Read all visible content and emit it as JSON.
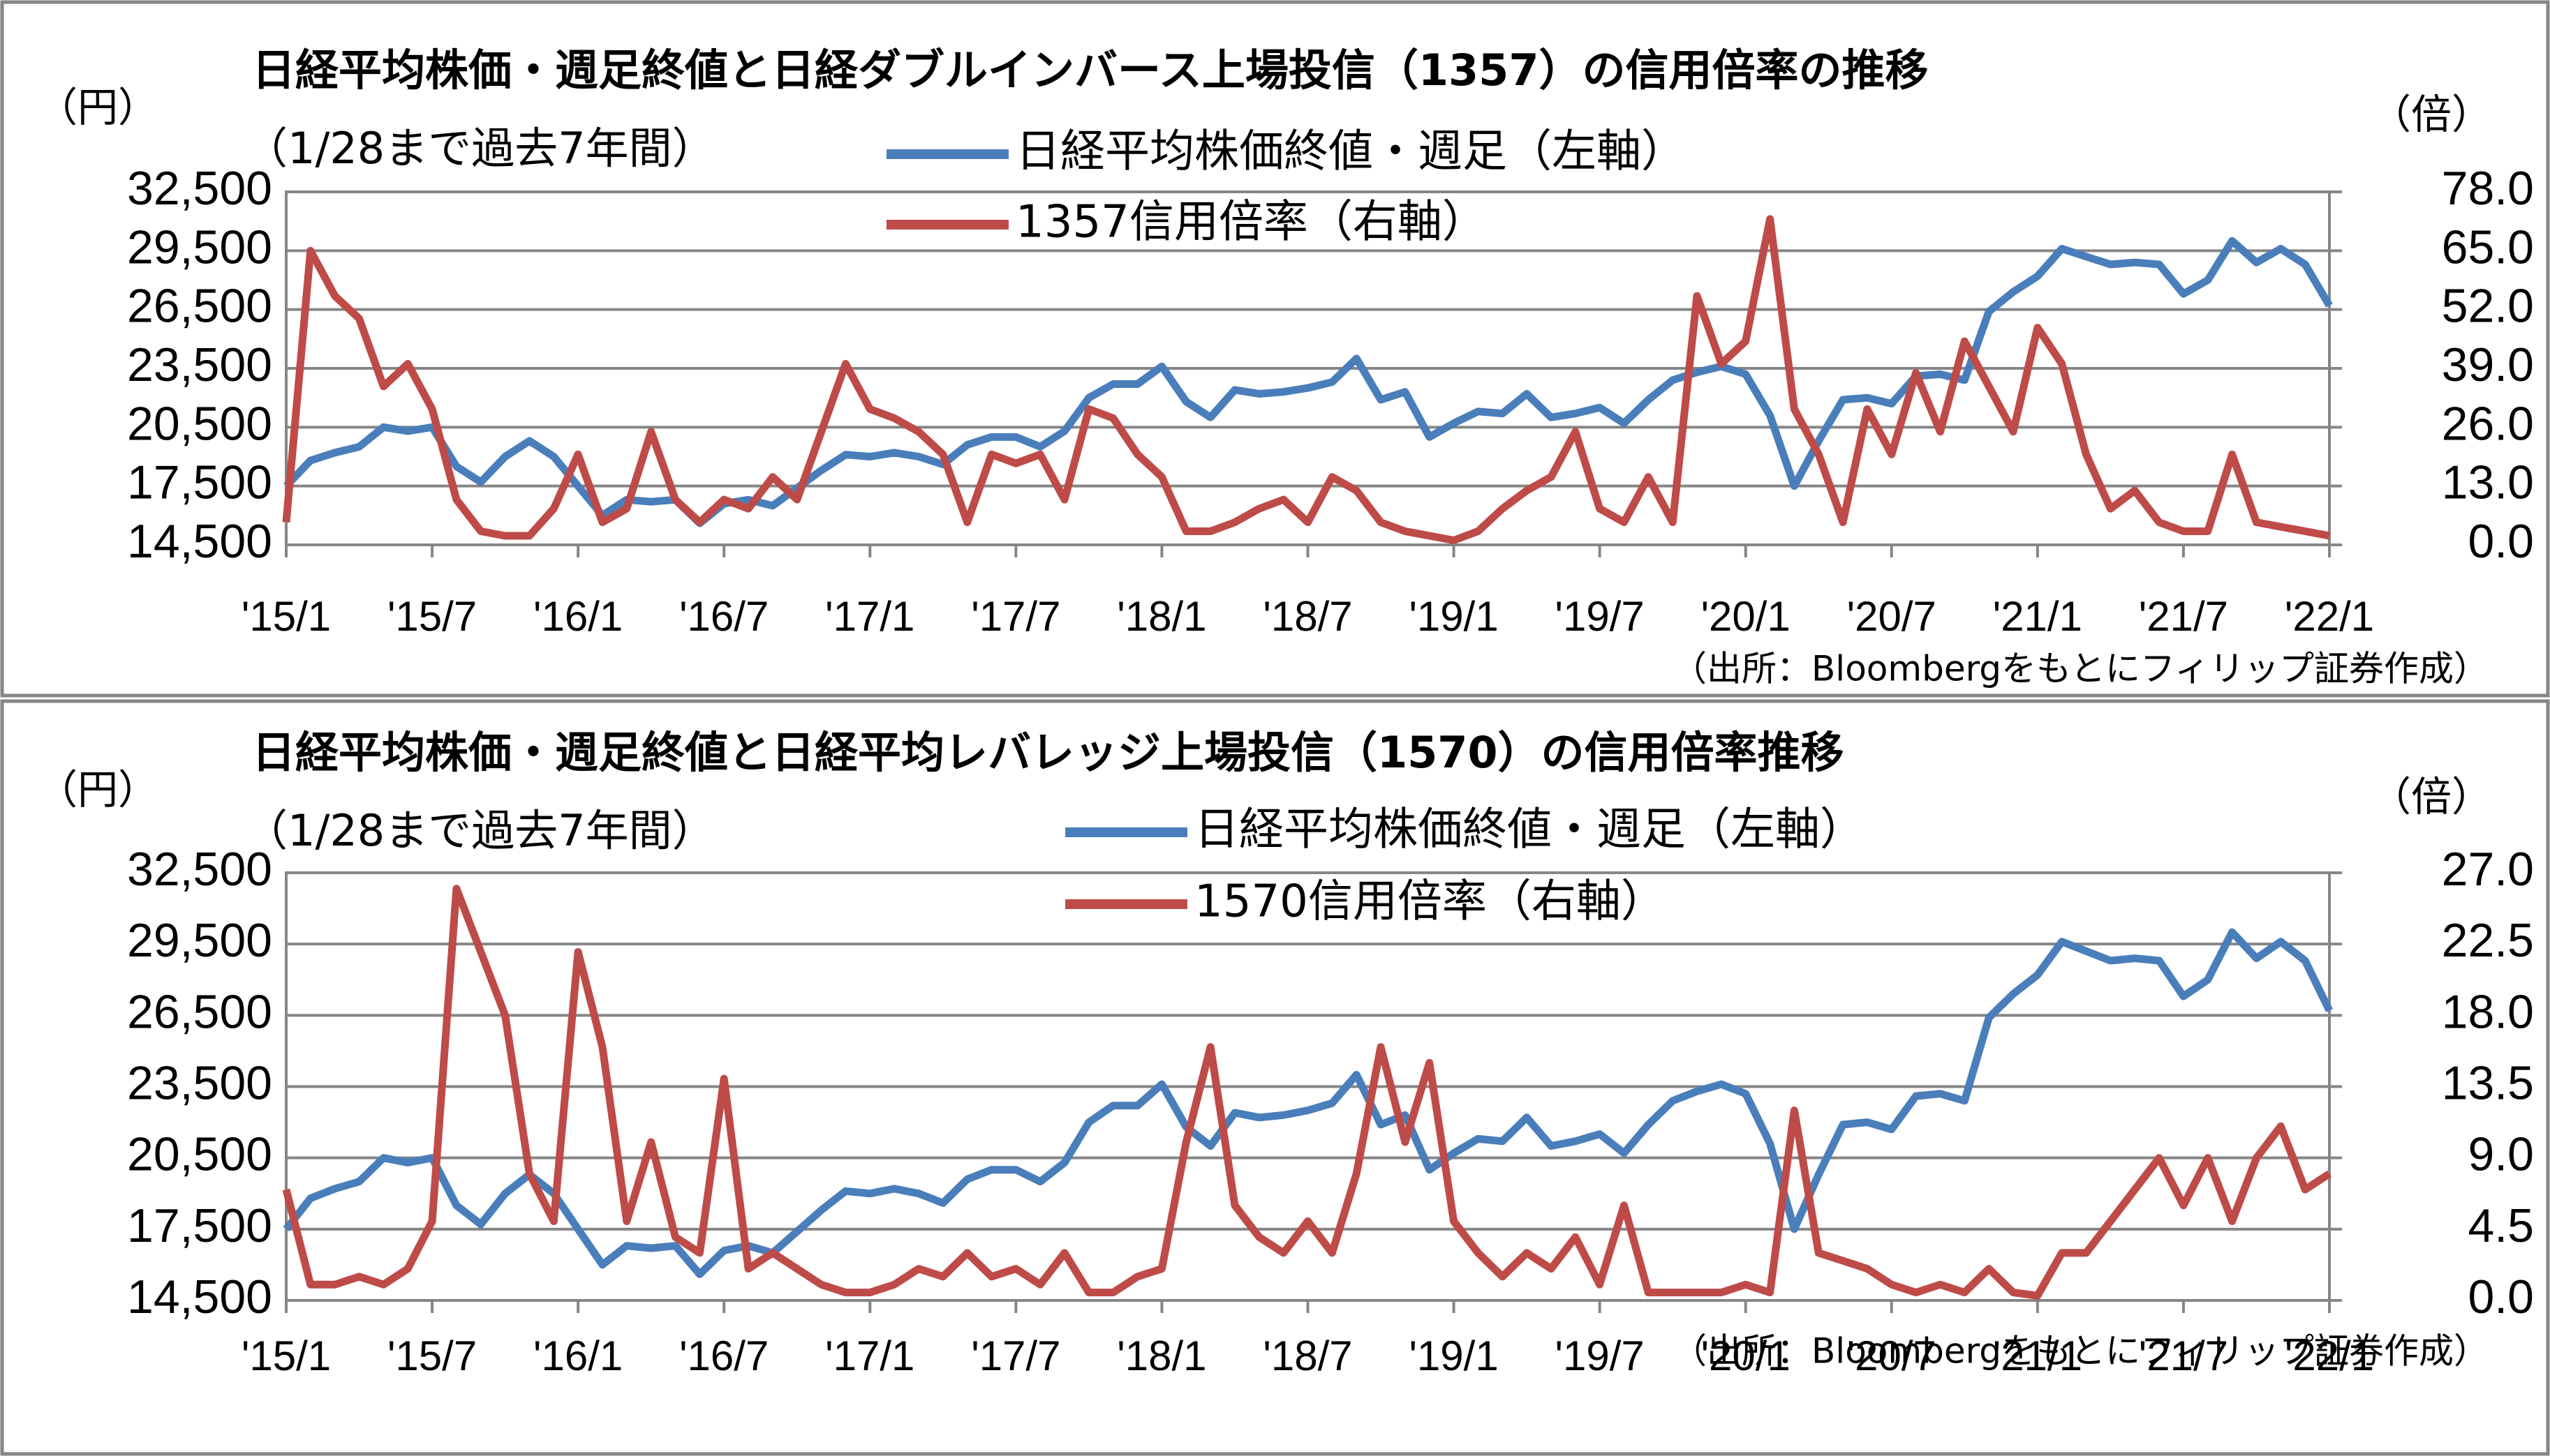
{
  "chart_data": [
    {
      "type": "line",
      "title": "日経平均株価・週足終値と日経ダブルインバース上場投信（1357）の信用倍率の推移",
      "subtitle": "（1/28まで過去7年間）",
      "ylabel": "（円）",
      "y2label": "（倍）",
      "source": "（出所：Bloombergをもとにフィリップ証券作成）",
      "x": [
        "2015-01",
        "2015-02",
        "2015-03",
        "2015-04",
        "2015-05",
        "2015-06",
        "2015-07",
        "2015-08",
        "2015-09",
        "2015-10",
        "2015-11",
        "2015-12",
        "2016-01",
        "2016-02",
        "2016-03",
        "2016-04",
        "2016-05",
        "2016-06",
        "2016-07",
        "2016-08",
        "2016-09",
        "2016-10",
        "2016-11",
        "2016-12",
        "2017-01",
        "2017-02",
        "2017-03",
        "2017-04",
        "2017-05",
        "2017-06",
        "2017-07",
        "2017-08",
        "2017-09",
        "2017-10",
        "2017-11",
        "2017-12",
        "2018-01",
        "2018-02",
        "2018-03",
        "2018-04",
        "2018-05",
        "2018-06",
        "2018-07",
        "2018-08",
        "2018-09",
        "2018-10",
        "2018-11",
        "2018-12",
        "2019-01",
        "2019-02",
        "2019-03",
        "2019-04",
        "2019-05",
        "2019-06",
        "2019-07",
        "2019-08",
        "2019-09",
        "2019-10",
        "2019-11",
        "2019-12",
        "2020-01",
        "2020-02",
        "2020-03",
        "2020-04",
        "2020-05",
        "2020-06",
        "2020-07",
        "2020-08",
        "2020-09",
        "2020-10",
        "2020-11",
        "2020-12",
        "2021-01",
        "2021-02",
        "2021-03",
        "2021-04",
        "2021-05",
        "2021-06",
        "2021-07",
        "2021-08",
        "2021-09",
        "2021-10",
        "2021-11",
        "2021-12",
        "2022-01"
      ],
      "xlim": [
        "2015-01",
        "2022-01"
      ],
      "xticks": [
        {
          "value": "2015-01",
          "label": "'15/1"
        },
        {
          "value": "2015-07",
          "label": "'15/7"
        },
        {
          "value": "2016-01",
          "label": "'16/1"
        },
        {
          "value": "2016-07",
          "label": "'16/7"
        },
        {
          "value": "2017-01",
          "label": "'17/1"
        },
        {
          "value": "2017-07",
          "label": "'17/7"
        },
        {
          "value": "2018-01",
          "label": "'18/1"
        },
        {
          "value": "2018-07",
          "label": "'18/7"
        },
        {
          "value": "2019-01",
          "label": "'19/1"
        },
        {
          "value": "2019-07",
          "label": "'19/7"
        },
        {
          "value": "2020-01",
          "label": "'20/1"
        },
        {
          "value": "2020-07",
          "label": "'20/7"
        },
        {
          "value": "2021-01",
          "label": "'21/1"
        },
        {
          "value": "2021-07",
          "label": "'21/7"
        },
        {
          "value": "2022-01",
          "label": "'22/1"
        }
      ],
      "ylim": [
        14500,
        32500
      ],
      "yticks": [
        {
          "value": 14500,
          "label": "14,500"
        },
        {
          "value": 17500,
          "label": "17,500"
        },
        {
          "value": 20500,
          "label": "20,500"
        },
        {
          "value": 23500,
          "label": "23,500"
        },
        {
          "value": 26500,
          "label": "26,500"
        },
        {
          "value": 29500,
          "label": "29,500"
        },
        {
          "value": 32500,
          "label": "32,500"
        }
      ],
      "y2lim": [
        0,
        78
      ],
      "y2ticks": [
        {
          "value": 0,
          "label": "0.0"
        },
        {
          "value": 13,
          "label": "13.0"
        },
        {
          "value": 26,
          "label": "26.0"
        },
        {
          "value": 39,
          "label": "39.0"
        },
        {
          "value": 52,
          "label": "52.0"
        },
        {
          "value": 65,
          "label": "65.0"
        },
        {
          "value": 78,
          "label": "78.0"
        }
      ],
      "grid": true,
      "series": [
        {
          "name": "日経平均株価終値・週足（左軸）",
          "color": "#4a7ebb",
          "values": [
            17500,
            18800,
            19200,
            19500,
            20500,
            20300,
            20500,
            18500,
            17700,
            19000,
            19800,
            19000,
            17500,
            16000,
            16800,
            16700,
            16800,
            15600,
            16600,
            16800,
            16500,
            17400,
            18300,
            19100,
            19000,
            19200,
            19000,
            18600,
            19600,
            20000,
            20000,
            19500,
            20300,
            22000,
            22700,
            22700,
            23600,
            21800,
            21000,
            22400,
            22200,
            22300,
            22500,
            22800,
            24000,
            21900,
            22300,
            20000,
            20700,
            21300,
            21200,
            22200,
            21000,
            21200,
            21500,
            20700,
            21900,
            22900,
            23300,
            23600,
            23200,
            21100,
            17500,
            19800,
            21900,
            22000,
            21700,
            23100,
            23200,
            22900,
            26400,
            27400,
            28200,
            29600,
            29200,
            28800,
            28900,
            28800,
            27300,
            28000,
            30000,
            28900,
            29600,
            28800,
            26700
          ]
        },
        {
          "name": "1357信用倍率（右軸）",
          "color": "#be4b48",
          "axis": "y2",
          "values": [
            5,
            65,
            55,
            50,
            35,
            40,
            30,
            10,
            3,
            2,
            2,
            8,
            20,
            5,
            8,
            25,
            10,
            5,
            10,
            8,
            15,
            10,
            25,
            40,
            30,
            28,
            25,
            20,
            5,
            20,
            18,
            20,
            10,
            30,
            28,
            20,
            15,
            3,
            3,
            5,
            8,
            10,
            5,
            15,
            12,
            5,
            3,
            2,
            1,
            3,
            8,
            12,
            15,
            25,
            8,
            5,
            15,
            5,
            55,
            40,
            45,
            72,
            30,
            20,
            5,
            30,
            20,
            38,
            25,
            45,
            35,
            25,
            48,
            40,
            20,
            8,
            12,
            5,
            3,
            3,
            20,
            5,
            4,
            3,
            2
          ]
        }
      ]
    },
    {
      "type": "line",
      "title": "日経平均株価・週足終値と日経平均レバレッジ上場投信（1570）の信用倍率推移",
      "subtitle": "（1/28まで過去7年間）",
      "ylabel": "（円）",
      "y2label": "（倍）",
      "source": "（出所：Bloombergをもとにフィリップ証券作成）",
      "x": [
        "2015-01",
        "2015-02",
        "2015-03",
        "2015-04",
        "2015-05",
        "2015-06",
        "2015-07",
        "2015-08",
        "2015-09",
        "2015-10",
        "2015-11",
        "2015-12",
        "2016-01",
        "2016-02",
        "2016-03",
        "2016-04",
        "2016-05",
        "2016-06",
        "2016-07",
        "2016-08",
        "2016-09",
        "2016-10",
        "2016-11",
        "2016-12",
        "2017-01",
        "2017-02",
        "2017-03",
        "2017-04",
        "2017-05",
        "2017-06",
        "2017-07",
        "2017-08",
        "2017-09",
        "2017-10",
        "2017-11",
        "2017-12",
        "2018-01",
        "2018-02",
        "2018-03",
        "2018-04",
        "2018-05",
        "2018-06",
        "2018-07",
        "2018-08",
        "2018-09",
        "2018-10",
        "2018-11",
        "2018-12",
        "2019-01",
        "2019-02",
        "2019-03",
        "2019-04",
        "2019-05",
        "2019-06",
        "2019-07",
        "2019-08",
        "2019-09",
        "2019-10",
        "2019-11",
        "2019-12",
        "2020-01",
        "2020-02",
        "2020-03",
        "2020-04",
        "2020-05",
        "2020-06",
        "2020-07",
        "2020-08",
        "2020-09",
        "2020-10",
        "2020-11",
        "2020-12",
        "2021-01",
        "2021-02",
        "2021-03",
        "2021-04",
        "2021-05",
        "2021-06",
        "2021-07",
        "2021-08",
        "2021-09",
        "2021-10",
        "2021-11",
        "2021-12",
        "2022-01"
      ],
      "xlim": [
        "2015-01",
        "2022-01"
      ],
      "xticks": [
        {
          "value": "2015-01",
          "label": "'15/1"
        },
        {
          "value": "2015-07",
          "label": "'15/7"
        },
        {
          "value": "2016-01",
          "label": "'16/1"
        },
        {
          "value": "2016-07",
          "label": "'16/7"
        },
        {
          "value": "2017-01",
          "label": "'17/1"
        },
        {
          "value": "2017-07",
          "label": "'17/7"
        },
        {
          "value": "2018-01",
          "label": "'18/1"
        },
        {
          "value": "2018-07",
          "label": "'18/7"
        },
        {
          "value": "2019-01",
          "label": "'19/1"
        },
        {
          "value": "2019-07",
          "label": "'19/7"
        },
        {
          "value": "2020-01",
          "label": "'20/1"
        },
        {
          "value": "2020-07",
          "label": "'20/7"
        },
        {
          "value": "2021-01",
          "label": "'21/1"
        },
        {
          "value": "2021-07",
          "label": "'21/7"
        },
        {
          "value": "2022-01",
          "label": "'22/1"
        }
      ],
      "ylim": [
        14500,
        32500
      ],
      "yticks": [
        {
          "value": 14500,
          "label": "14,500"
        },
        {
          "value": 17500,
          "label": "17,500"
        },
        {
          "value": 20500,
          "label": "20,500"
        },
        {
          "value": 23500,
          "label": "23,500"
        },
        {
          "value": 26500,
          "label": "26,500"
        },
        {
          "value": 29500,
          "label": "29,500"
        },
        {
          "value": 32500,
          "label": "32,500"
        }
      ],
      "y2lim": [
        0,
        27
      ],
      "y2ticks": [
        {
          "value": 0,
          "label": "0.0"
        },
        {
          "value": 4.5,
          "label": "4.5"
        },
        {
          "value": 9,
          "label": "9.0"
        },
        {
          "value": 13.5,
          "label": "13.5"
        },
        {
          "value": 18,
          "label": "18.0"
        },
        {
          "value": 22.5,
          "label": "22.5"
        },
        {
          "value": 27,
          "label": "27.0"
        }
      ],
      "grid": true,
      "series": [
        {
          "name": "日経平均株価終値・週足（左軸）",
          "color": "#4a7ebb",
          "values": [
            17500,
            18800,
            19200,
            19500,
            20500,
            20300,
            20500,
            18500,
            17700,
            19000,
            19800,
            19000,
            17500,
            16000,
            16800,
            16700,
            16800,
            15600,
            16600,
            16800,
            16500,
            17400,
            18300,
            19100,
            19000,
            19200,
            19000,
            18600,
            19600,
            20000,
            20000,
            19500,
            20300,
            22000,
            22700,
            22700,
            23600,
            21800,
            21000,
            22400,
            22200,
            22300,
            22500,
            22800,
            24000,
            21900,
            22300,
            20000,
            20700,
            21300,
            21200,
            22200,
            21000,
            21200,
            21500,
            20700,
            21900,
            22900,
            23300,
            23600,
            23200,
            21100,
            17500,
            19800,
            21900,
            22000,
            21700,
            23100,
            23200,
            22900,
            26400,
            27400,
            28200,
            29600,
            29200,
            28800,
            28900,
            28800,
            27300,
            28000,
            30000,
            28900,
            29600,
            28800,
            26700
          ]
        },
        {
          "name": "1570信用倍率（右軸）",
          "color": "#be4b48",
          "axis": "y2",
          "values": [
            7,
            1,
            1,
            1.5,
            1,
            2,
            5,
            26,
            22,
            18,
            8,
            5,
            22,
            16,
            5,
            10,
            4,
            3,
            14,
            2,
            3,
            2,
            1,
            0.5,
            0.5,
            1,
            2,
            1.5,
            3,
            1.5,
            2,
            1,
            3,
            0.5,
            0.5,
            1.5,
            2,
            10,
            16,
            6,
            4,
            3,
            5,
            3,
            8,
            16,
            10,
            15,
            5,
            3,
            1.5,
            3,
            2,
            4,
            1,
            6,
            0.5,
            0.5,
            0.5,
            0.5,
            1,
            0.5,
            12,
            3,
            2.5,
            2,
            1,
            0.5,
            1,
            0.5,
            2,
            0.5,
            0.3,
            3,
            3,
            5,
            7,
            9,
            6,
            9,
            5,
            9,
            11,
            7,
            8
          ]
        }
      ]
    }
  ]
}
